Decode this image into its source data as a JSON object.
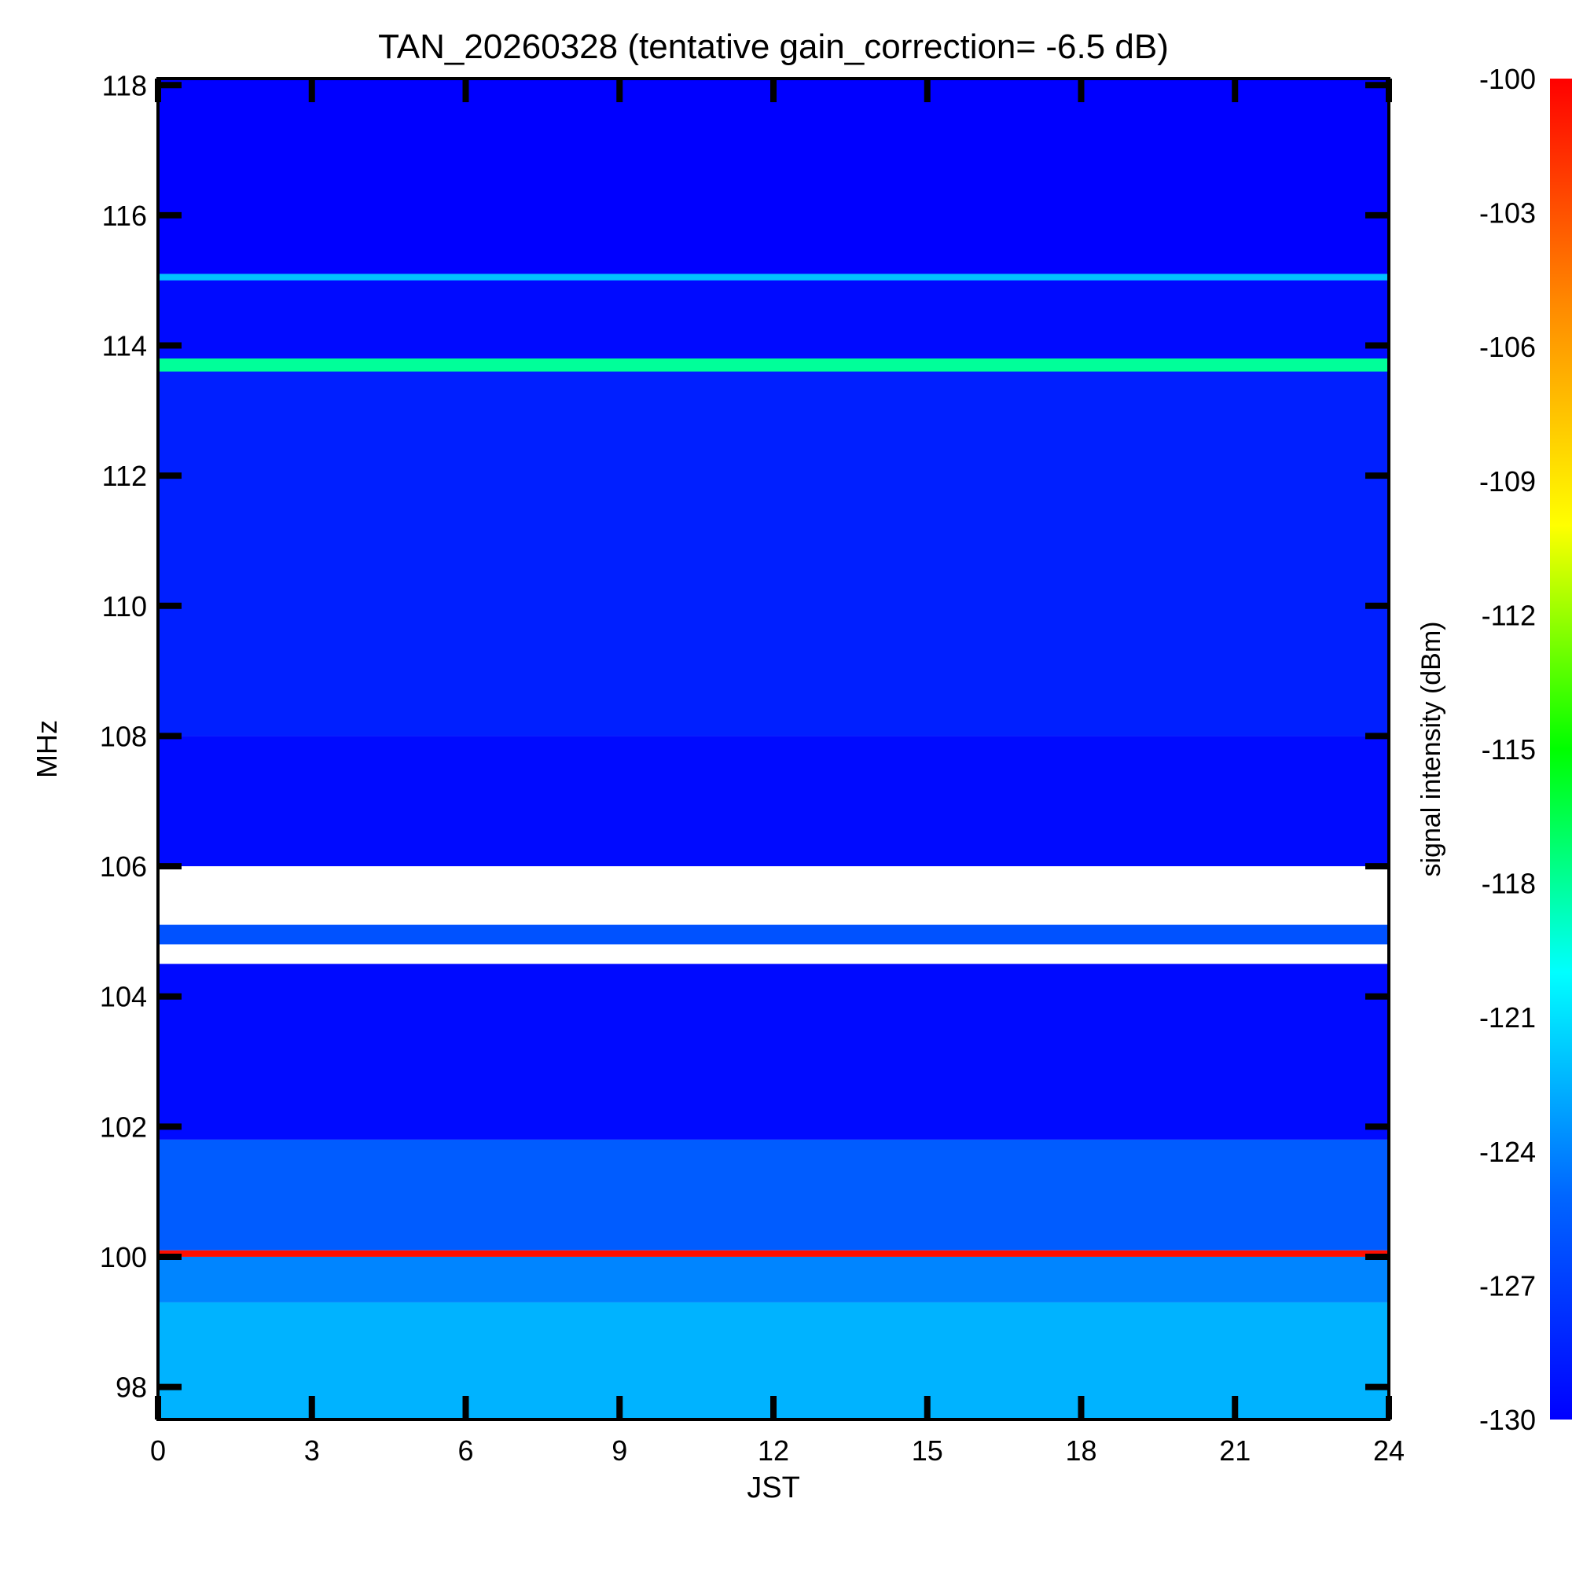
{
  "chart_data": {
    "type": "heatmap",
    "title": "TAN_20260328 (tentative gain_correction= -6.5 dB)",
    "xlabel": "JST",
    "ylabel": "MHz",
    "colorbar_label": "signal intensity (dBm)",
    "xlim": [
      0,
      24
    ],
    "ylim": [
      97.5,
      118.1
    ],
    "x_ticks": [
      0,
      3,
      6,
      9,
      12,
      15,
      18,
      21,
      24
    ],
    "x_tick_labels": [
      "0",
      "3",
      "6",
      "9",
      "12",
      "15",
      "18",
      "21",
      "24"
    ],
    "y_ticks": [
      98,
      100,
      102,
      104,
      106,
      108,
      110,
      112,
      114,
      116,
      118
    ],
    "y_tick_labels": [
      "98",
      "100",
      "102",
      "104",
      "106",
      "108",
      "110",
      "112",
      "114",
      "116",
      "118"
    ],
    "colorbar_range": [
      -130,
      -100
    ],
    "colorbar_ticks": [
      -100,
      -103,
      -106,
      -109,
      -112,
      -115,
      -118,
      -121,
      -124,
      -127,
      -130
    ],
    "colorbar_tick_labels": [
      "-100",
      "-103",
      "-106",
      "-109",
      "-112",
      "-115",
      "-118",
      "-121",
      "-124",
      "-127",
      "-130"
    ],
    "colormap_stops": [
      "#0000ff",
      "#0066ff",
      "#00ffff",
      "#00ff00",
      "#ffff00",
      "#ff8800",
      "#ff0000"
    ],
    "background_color": "#ffffff",
    "bands": [
      {
        "freq_range": [
          97.5,
          99.3
        ],
        "level_dbm": -122.5
      },
      {
        "freq_range": [
          99.3,
          100.0
        ],
        "level_dbm": -124
      },
      {
        "freq_range": [
          100.0,
          100.1
        ],
        "level_dbm": -100.5
      },
      {
        "freq_range": [
          100.1,
          101.8
        ],
        "level_dbm": -125.5
      },
      {
        "freq_range": [
          101.8,
          104.5
        ],
        "level_dbm": -129.5
      },
      {
        "freq_range": [
          104.8,
          105.1
        ],
        "level_dbm": -126
      },
      {
        "freq_range": [
          106.0,
          108.0
        ],
        "level_dbm": -129.5
      },
      {
        "freq_range": [
          108.0,
          113.8
        ],
        "level_dbm": -128.5
      },
      {
        "freq_range": [
          113.6,
          113.8
        ],
        "level_dbm": -118
      },
      {
        "freq_range": [
          113.8,
          115.1
        ],
        "level_dbm": -129.5
      },
      {
        "freq_range": [
          115.0,
          115.1
        ],
        "level_dbm": -122
      },
      {
        "freq_range": [
          115.1,
          118.1
        ],
        "level_dbm": -130
      }
    ],
    "notable_lines_mhz": [
      100.0,
      105.0,
      113.7,
      115.0
    ],
    "grid": false,
    "legend": "colorbar right"
  }
}
